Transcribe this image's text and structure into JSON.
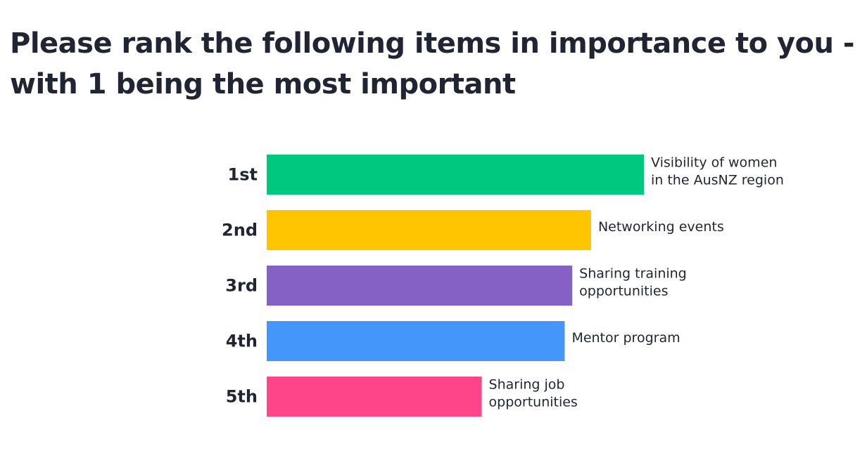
{
  "chart_data": {
    "type": "bar",
    "orientation": "horizontal",
    "title": [
      "Please rank the following items in importance to you -",
      "with 1 being the most important"
    ],
    "categories": [
      "1st",
      "2nd",
      "3rd",
      "4th",
      "5th"
    ],
    "item_labels": [
      [
        "Visibility of women",
        "in the AusNZ region"
      ],
      [
        "Networking events"
      ],
      [
        "Sharing training",
        "opportunities"
      ],
      [
        "Mentor program"
      ],
      [
        "Sharing job",
        "opportunities"
      ]
    ],
    "values": [
      100,
      86,
      81,
      79,
      57
    ],
    "colors": [
      "#00c97f",
      "#ffc600",
      "#8561c5",
      "#4496fa",
      "#ff4589"
    ],
    "xlim": [
      0,
      100
    ]
  }
}
